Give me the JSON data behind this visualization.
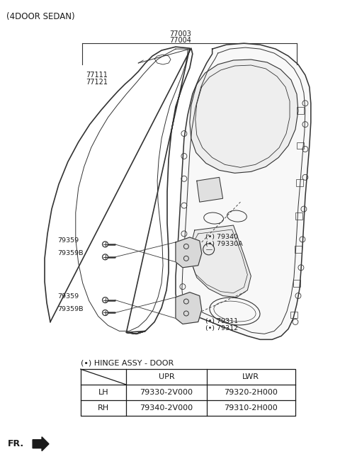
{
  "title": "(4DOOR SEDAN)",
  "bg_color": "#ffffff",
  "text_color": "#1a1a1a",
  "line_color": "#333333",
  "blue_color": "#4a6fa5",
  "label_77003": "77003",
  "label_77004": "77004",
  "label_77111": "77111",
  "label_77121": "77121",
  "label_79340": "(•) 79340",
  "label_79330A": "(•) 79330A",
  "label_79359_top": "79359",
  "label_79359B_top": "79359B",
  "label_79359_bot": "79359",
  "label_79359B_bot": "79359B",
  "label_79311": "(•) 79311",
  "label_79312": "(•) 79312",
  "table_title": "(•) HINGE ASSY - DOOR",
  "table_headers": [
    "",
    "UPR",
    "LWR"
  ],
  "table_row1": [
    "LH",
    "79330-2V000",
    "79320-2H000"
  ],
  "table_row2": [
    "RH",
    "79340-2V000",
    "79310-2H000"
  ],
  "fr_label": "FR."
}
